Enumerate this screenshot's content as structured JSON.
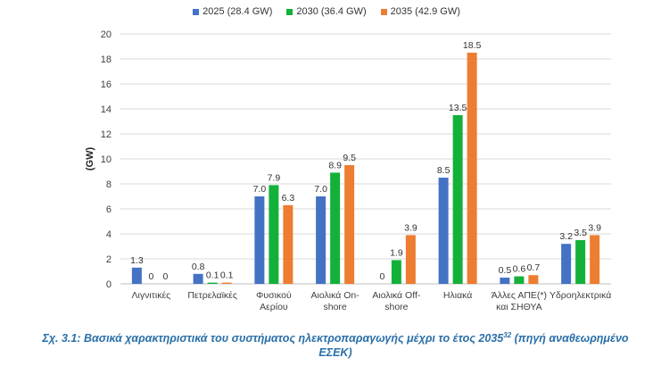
{
  "chart_data": {
    "type": "bar",
    "ylabel": "(GW)",
    "ylim": [
      0,
      20
    ],
    "yticks": [
      "0",
      "2",
      "4",
      "6",
      "8",
      "10",
      "12",
      "14",
      "16",
      "18",
      "20"
    ],
    "grid": true,
    "legend_position": "top-center",
    "categories": [
      [
        "Λιγνιτικές"
      ],
      [
        "Πετρελαϊκές"
      ],
      [
        "Φυσικού",
        "Αερίου"
      ],
      [
        "Αιολικά On-",
        "shore"
      ],
      [
        "Αιολικά Off-",
        "shore"
      ],
      [
        "Ηλιακά"
      ],
      [
        "Άλλες ΑΠΕ(*)",
        "και ΣΗΘΥΑ"
      ],
      [
        "Υδροηλεκτρικά"
      ]
    ],
    "series": [
      {
        "name": "2025 (28.4 GW)",
        "color": "#4472C4",
        "values": [
          1.3,
          0.8,
          7.0,
          7.0,
          0,
          8.5,
          0.5,
          3.2
        ],
        "labels": [
          "1.3",
          "0.8",
          "7.0",
          "7.0",
          "0",
          "8.5",
          "0.5",
          "3.2"
        ]
      },
      {
        "name": "2030 (36.4 GW)",
        "color": "#13B13A",
        "values": [
          0,
          0.1,
          7.9,
          8.9,
          1.9,
          13.5,
          0.6,
          3.5
        ],
        "labels": [
          "0",
          "0.1",
          "7.9",
          "8.9",
          "1.9",
          "13.5",
          "0.6",
          "3.5"
        ]
      },
      {
        "name": "2035 (42.9 GW)",
        "color": "#ED7D31",
        "values": [
          0,
          0.1,
          6.3,
          9.5,
          3.9,
          18.5,
          0.7,
          3.9
        ],
        "labels": [
          "0",
          "0.1",
          "6.3",
          "9.5",
          "3.9",
          "18.5",
          "0.7",
          "3.9"
        ]
      }
    ]
  },
  "caption": {
    "text": "Σχ. 3.1: Βασικά χαρακτηριστικά του συστήματος ηλεκτροπαραγωγής μέχρι το έτος 2035",
    "superscript": "32",
    "text_after": " (πηγή αναθεωρημένο ΕΣΕΚ)"
  }
}
